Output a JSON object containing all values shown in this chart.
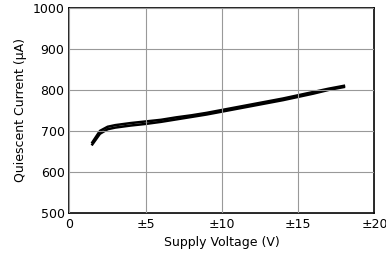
{
  "xlabel": "Supply Voltage (V)",
  "ylabel": "Quiescent Current (μA)",
  "xlim": [
    0,
    20
  ],
  "ylim": [
    500,
    1000
  ],
  "xticks": [
    0,
    5,
    10,
    15,
    20
  ],
  "xticklabels": [
    "0",
    "±5",
    "±10",
    "±15",
    "±20"
  ],
  "yticks": [
    500,
    600,
    700,
    800,
    900,
    1000
  ],
  "yticklabels": [
    "500",
    "600",
    "700",
    "800",
    "900",
    "1000"
  ],
  "line_upper_x": [
    1.5,
    2.0,
    2.5,
    3.0,
    4.0,
    5.0,
    6.0,
    7.0,
    8.0,
    9.0,
    10.0,
    11.0,
    12.0,
    13.0,
    14.0,
    15.0,
    16.0,
    17.0,
    18.0
  ],
  "line_upper_y": [
    672,
    700,
    710,
    714,
    719,
    723,
    727,
    733,
    738,
    744,
    751,
    758,
    765,
    772,
    779,
    787,
    795,
    803,
    810
  ],
  "line_lower_x": [
    1.5,
    2.0,
    2.5,
    3.0,
    4.0,
    5.0,
    6.0,
    7.0,
    8.0,
    9.0,
    10.0,
    11.0,
    12.0,
    13.0,
    14.0,
    15.0,
    16.0,
    17.0,
    18.0
  ],
  "line_lower_y": [
    667,
    693,
    704,
    708,
    713,
    717,
    722,
    728,
    734,
    740,
    747,
    754,
    761,
    768,
    775,
    783,
    791,
    800,
    807
  ],
  "line_color": "#000000",
  "line_width": 1.8,
  "grid_color": "#999999",
  "bg_color": "#ffffff",
  "tick_fontsize": 9,
  "label_fontsize": 9,
  "figsize": [
    3.86,
    2.66
  ],
  "dpi": 100
}
